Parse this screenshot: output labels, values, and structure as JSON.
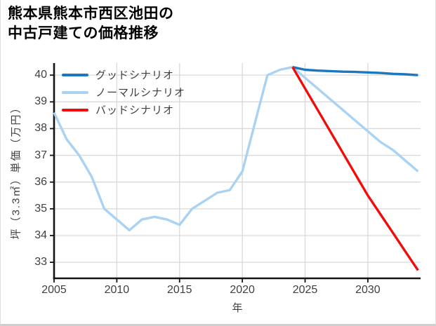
{
  "title": {
    "line1": "熊本県熊本市西区池田の",
    "line2": "中古戸建ての価格推移"
  },
  "colors": {
    "grid": "#d9d9d9",
    "spine": "#141414",
    "tick_label": "#3f3f3f",
    "good_scenario": "#1b78be",
    "normal_scenario": "#aad2f2",
    "bad_scenario": "#f20b0b"
  },
  "chart_data": {
    "type": "line",
    "title": "熊本県熊本市西区池田の中古戸建ての価格推移",
    "xlabel": "年",
    "ylabel": "坪（3.3㎡）単価（万円）",
    "xlim": [
      2005,
      2034.2
    ],
    "ylim": [
      32.4,
      40.45
    ],
    "xticks": [
      2005,
      2010,
      2015,
      2020,
      2025,
      2030
    ],
    "yticks": [
      33,
      34,
      35,
      36,
      37,
      38,
      39,
      40
    ],
    "grid": true,
    "legend_position": "upper-left",
    "series": [
      {
        "name": "グッドシナリオ",
        "color": "#1b78be",
        "x": [
          2024,
          2025,
          2026,
          2027,
          2028,
          2029,
          2030,
          2031,
          2032,
          2033,
          2034
        ],
        "values": [
          40.3,
          40.2,
          40.17,
          40.15,
          40.13,
          40.12,
          40.1,
          40.08,
          40.05,
          40.03,
          40.0
        ]
      },
      {
        "name": "ノーマルシナリオ",
        "color": "#aad2f2",
        "x": [
          2005,
          2006,
          2007,
          2008,
          2009,
          2010,
          2011,
          2012,
          2013,
          2014,
          2015,
          2016,
          2017,
          2018,
          2019,
          2020,
          2021,
          2022,
          2023,
          2024,
          2025,
          2026,
          2027,
          2028,
          2029,
          2030,
          2031,
          2032,
          2033,
          2034
        ],
        "values": [
          38.6,
          37.6,
          37.0,
          36.2,
          35.0,
          34.6,
          34.2,
          34.6,
          34.7,
          34.6,
          34.4,
          35.0,
          35.3,
          35.6,
          35.7,
          36.4,
          38.2,
          40.0,
          40.2,
          40.3,
          39.9,
          39.5,
          39.1,
          38.7,
          38.3,
          37.9,
          37.5,
          37.2,
          36.8,
          36.4
        ]
      },
      {
        "name": "バッドシナリオ",
        "color": "#f20b0b",
        "x": [
          2024,
          2025,
          2026,
          2027,
          2028,
          2029,
          2030,
          2031,
          2032,
          2033,
          2034
        ],
        "values": [
          40.3,
          39.5,
          38.7,
          37.9,
          37.1,
          36.3,
          35.5,
          34.8,
          34.1,
          33.4,
          32.7
        ]
      }
    ]
  }
}
